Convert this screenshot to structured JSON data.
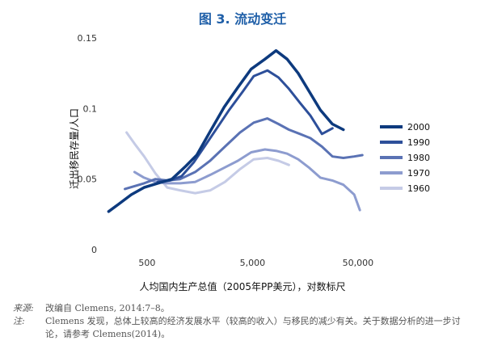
{
  "title": "图 3. 流动变迁",
  "notes": {
    "source_label": "来源:",
    "source_text": "改编自 Clemens, 2014:7–8。",
    "note_label": "注:",
    "note_text": "Clemens 发现，总体上较高的经济发展水平（较高的收入）与移民的减少有关。关于数据分析的进一步讨论，请参考 Clemens(2014)。"
  },
  "chart_data": {
    "type": "line",
    "xlabel": "人均国内生产总值（2005年PP美元），对数标尺",
    "ylabel": "迁出移民存量/人口",
    "x_scale": "log",
    "xlim": [
      200,
      70000
    ],
    "ylim": [
      0,
      0.15
    ],
    "xticks": [
      {
        "value": 500,
        "label": "500"
      },
      {
        "value": 5000,
        "label": "5,000"
      },
      {
        "value": 50000,
        "label": "50,000"
      }
    ],
    "yticks": [
      {
        "value": 0,
        "label": "0"
      },
      {
        "value": 0.05,
        "label": "0.05"
      },
      {
        "value": 0.1,
        "label": "0.1"
      },
      {
        "value": 0.15,
        "label": "0.15"
      }
    ],
    "legend_position": "right",
    "series": [
      {
        "name": "2000",
        "color": "#0d3a7e",
        "width": 3.5,
        "x": [
          216,
          266,
          355,
          468,
          630,
          860,
          1160,
          1480,
          1990,
          2690,
          3630,
          4860,
          6560,
          8350,
          10630,
          13540,
          17240,
          21950,
          28500,
          36280
        ],
        "y": [
          0.027,
          0.032,
          0.039,
          0.044,
          0.047,
          0.05,
          0.059,
          0.067,
          0.084,
          0.101,
          0.115,
          0.128,
          0.135,
          0.141,
          0.135,
          0.125,
          0.112,
          0.099,
          0.089,
          0.085
        ]
      },
      {
        "name": "1990",
        "color": "#2d4f9a",
        "width": 3,
        "x": [
          630,
          830,
          1060,
          1390,
          1750,
          2390,
          3000,
          4040,
          5130,
          6910,
          8800,
          11050,
          14070,
          17680,
          22730,
          28640
        ],
        "y": [
          0.048,
          0.049,
          0.052,
          0.062,
          0.073,
          0.088,
          0.099,
          0.112,
          0.123,
          0.127,
          0.122,
          0.114,
          0.104,
          0.095,
          0.082,
          0.086
        ]
      },
      {
        "name": "1980",
        "color": "#5a72b4",
        "width": 3,
        "x": [
          308,
          380,
          468,
          600,
          775,
          1030,
          1430,
          1980,
          2740,
          3800,
          5130,
          6910,
          8800,
          11050,
          14070,
          17680,
          22730,
          28640,
          36280,
          46000,
          55000
        ],
        "y": [
          0.043,
          0.045,
          0.047,
          0.05,
          0.049,
          0.05,
          0.055,
          0.063,
          0.073,
          0.083,
          0.09,
          0.093,
          0.089,
          0.085,
          0.082,
          0.079,
          0.073,
          0.066,
          0.065,
          0.066,
          0.067
        ]
      },
      {
        "name": "1970",
        "color": "#8d9ccf",
        "width": 3,
        "x": [
          380,
          468,
          600,
          775,
          1030,
          1430,
          1990,
          2690,
          3630,
          4860,
          6560,
          8350,
          10630,
          13540,
          17240,
          21950,
          28500,
          36280,
          46000,
          52000
        ],
        "y": [
          0.055,
          0.051,
          0.048,
          0.047,
          0.047,
          0.048,
          0.053,
          0.058,
          0.063,
          0.069,
          0.071,
          0.07,
          0.068,
          0.064,
          0.058,
          0.051,
          0.049,
          0.046,
          0.039,
          0.028
        ]
      },
      {
        "name": "1960",
        "color": "#c5cbe6",
        "width": 3,
        "x": [
          320,
          390,
          470,
          600,
          775,
          1030,
          1430,
          1990,
          2740,
          3800,
          5130,
          6910,
          8800,
          11050
        ],
        "y": [
          0.083,
          0.074,
          0.066,
          0.054,
          0.044,
          0.042,
          0.04,
          0.042,
          0.048,
          0.057,
          0.064,
          0.065,
          0.063,
          0.06
        ]
      }
    ]
  }
}
